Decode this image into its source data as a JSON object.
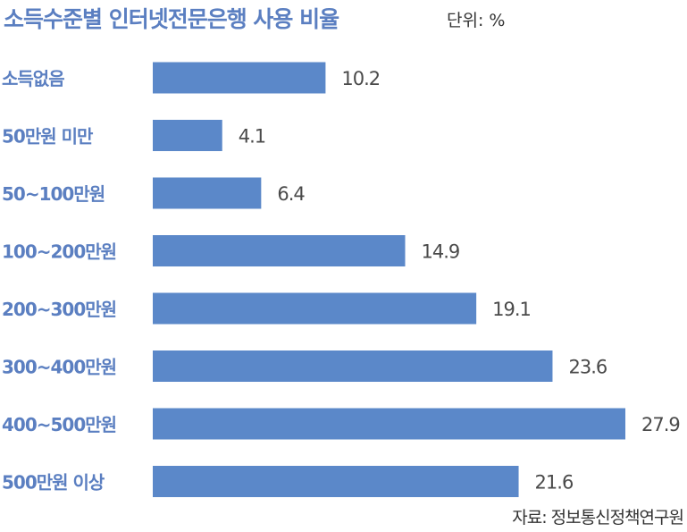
{
  "title": "소득수준별 인터넷전문은행 사용 비율",
  "unit": "단위: %",
  "source": "자료: 정보통신정책연구원",
  "colors": {
    "bar": "#5b88c9",
    "label": "#5b7fc1"
  },
  "chart_data": {
    "type": "bar",
    "orientation": "horizontal",
    "title": "소득수준별 인터넷전문은행 사용 비율",
    "unit": "단위: %",
    "categories": [
      "소득없음",
      "50만원 미만",
      "50~100만원",
      "100~200만원",
      "200~300만원",
      "300~400만원",
      "400~500만원",
      "500만원 이상"
    ],
    "values": [
      10.2,
      4.1,
      6.4,
      14.9,
      19.1,
      23.6,
      27.9,
      21.6
    ],
    "value_labels": [
      "10.2",
      "4.1",
      "6.4",
      "14.9",
      "19.1",
      "23.6",
      "27.9",
      "21.6"
    ],
    "xlim": [
      0,
      27.9
    ],
    "grid": false,
    "legend": "none"
  }
}
